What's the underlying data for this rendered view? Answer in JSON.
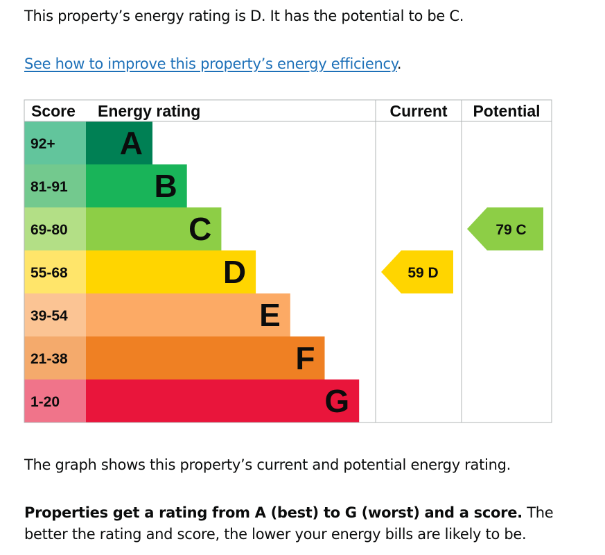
{
  "intro_text": "This property’s energy rating is D. It has the potential to be C.",
  "improve_link": "See how to improve this property’s energy efficiency",
  "improve_link_suffix": ".",
  "graph_note": "The graph shows this property’s current and potential energy rating.",
  "ratings_bold": "Properties get a rating from A (best) to G (worst) and a score.",
  "ratings_rest": " The better the rating and score, the lower your energy bills are likely to be.",
  "chart_data": {
    "type": "table",
    "columns": [
      "Score",
      "Energy rating",
      "Current",
      "Potential"
    ],
    "bands": [
      {
        "score": "92+",
        "letter": "A",
        "color": "#008054",
        "score_color": "#62c59c"
      },
      {
        "score": "81-91",
        "letter": "B",
        "color": "#19b459",
        "score_color": "#73c98e"
      },
      {
        "score": "69-80",
        "letter": "C",
        "color": "#8dce46",
        "score_color": "#b3df86"
      },
      {
        "score": "55-68",
        "letter": "D",
        "color": "#ffd500",
        "score_color": "#ffe56a"
      },
      {
        "score": "39-54",
        "letter": "E",
        "color": "#fcaa65",
        "score_color": "#fbc494"
      },
      {
        "score": "21-38",
        "letter": "F",
        "color": "#ef8023",
        "score_color": "#f4aa6c"
      },
      {
        "score": "1-20",
        "letter": "G",
        "color": "#e9153b",
        "score_color": "#f0748a"
      }
    ],
    "current": {
      "score": 59,
      "letter": "D",
      "label": "59  D",
      "color": "#ffd500"
    },
    "potential": {
      "score": 79,
      "letter": "C",
      "label": "79  C",
      "color": "#8dce46"
    }
  }
}
